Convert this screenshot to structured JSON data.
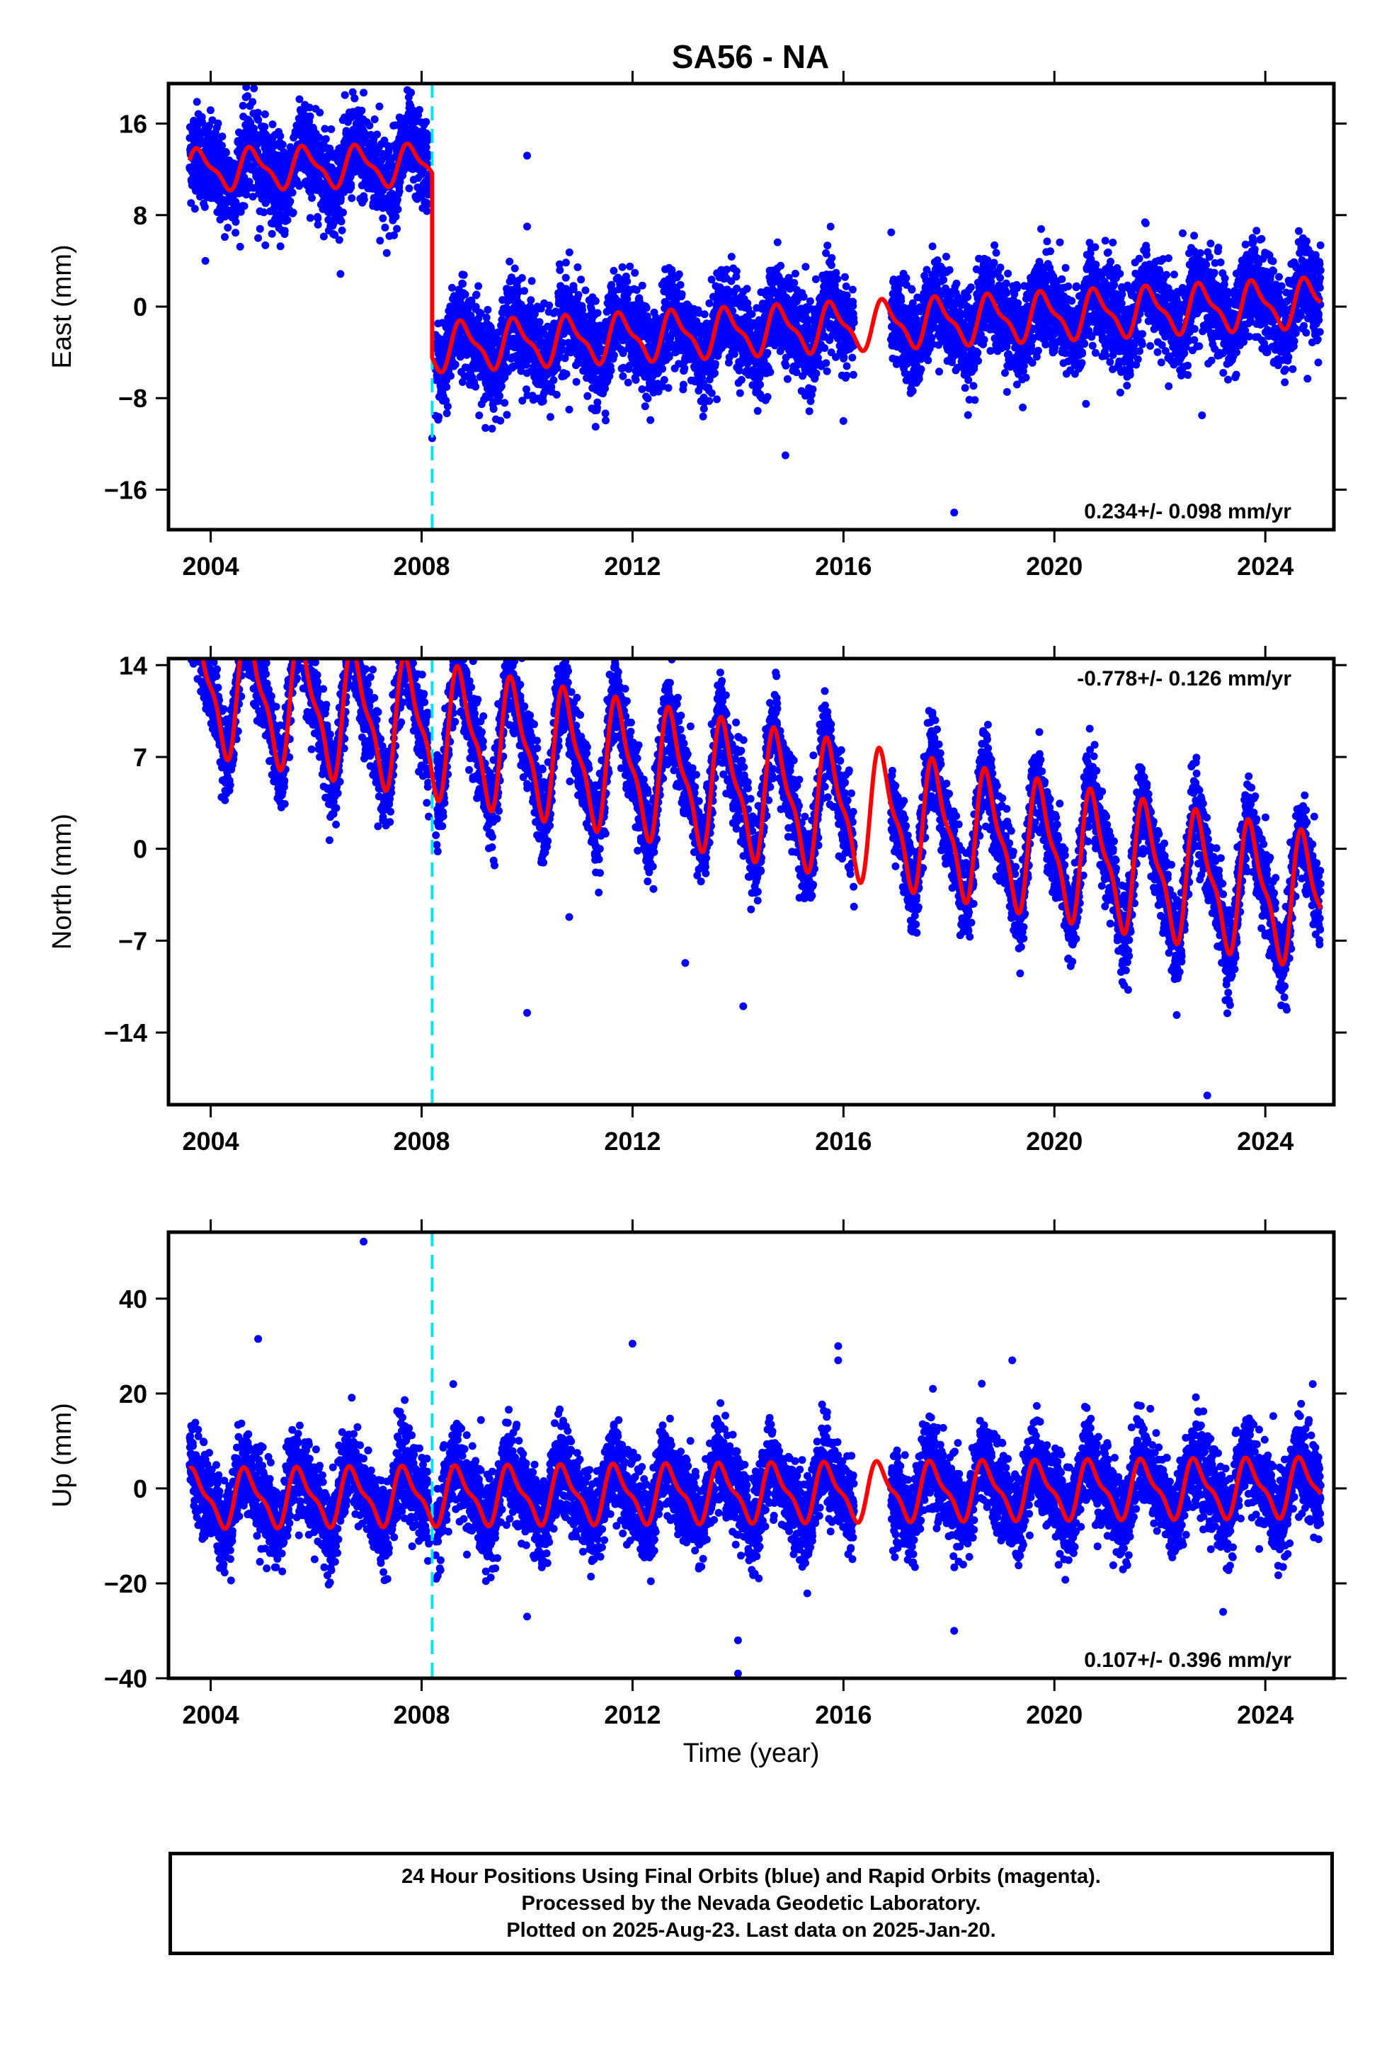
{
  "title": "SA56 - NA",
  "colors": {
    "final_orbits": "#0000ff",
    "model_fit": "#ff0000",
    "equipment_change": "#00e5ee",
    "axes": "#000000"
  },
  "xaxis": {
    "label": "Time (year)",
    "range": [
      2003.2,
      2025.3
    ],
    "ticks": [
      "2004",
      "2008",
      "2012",
      "2016",
      "2020",
      "2024"
    ]
  },
  "equipment_change_epoch": 2008.2,
  "chart_data": [
    {
      "type": "scatter",
      "panel": "east",
      "ylabel": "East (mm)",
      "ylim": [
        -19.5,
        19.5
      ],
      "ytick_values": [
        16,
        8,
        0,
        -8,
        -16
      ],
      "ytick_labels": [
        "16",
        "8",
        "0",
        "−8",
        "−16"
      ],
      "rate_label": "0.234+/- 0.098 mm/yr",
      "rate_position": "bottom-right",
      "data_span": [
        2003.6,
        2025.05
      ],
      "data_gap": [
        2016.2,
        2016.9
      ],
      "series": [
        {
          "name": "Final Orbits",
          "kind": "points",
          "color": "#0000ff",
          "scatter_mm": 2.0
        },
        {
          "name": "Rapid Orbits",
          "kind": "points",
          "color": "#ff00ff",
          "values": []
        },
        {
          "name": "Model fit",
          "kind": "line",
          "color": "#ff0000",
          "segments": [
            {
              "start": 2003.6,
              "end": 2008.2,
              "offset_mm": 13.0,
              "rate_mm_per_yr": 0.1,
              "annual_amp_mm": 1.6,
              "annual_phase_yr": 0.55
            },
            {
              "start": 2008.2,
              "end": 2025.05,
              "offset_mm": -2.2,
              "rate_mm_per_yr": 0.234,
              "annual_amp_mm": 1.9,
              "annual_phase_yr": 0.55
            }
          ]
        }
      ],
      "outliers": [
        [
          2006.9,
          18.7
        ],
        [
          2007.2,
          17.5
        ],
        [
          2010.0,
          13.2
        ],
        [
          2010.0,
          7.0
        ],
        [
          2003.9,
          4.0
        ],
        [
          2004.9,
          6.0
        ],
        [
          2008.2,
          -11.5
        ],
        [
          2010.8,
          -9.0
        ],
        [
          2011.3,
          -10.5
        ],
        [
          2014.9,
          -13.0
        ],
        [
          2016.0,
          -10.0
        ],
        [
          2018.1,
          -18.0
        ],
        [
          2020.6,
          -8.5
        ],
        [
          2022.8,
          -9.5
        ],
        [
          2024.8,
          -6.3
        ]
      ]
    },
    {
      "type": "scatter",
      "panel": "north",
      "ylabel": "North (mm)",
      "ylim": [
        -19.5,
        14.5
      ],
      "ytick_values": [
        14,
        7,
        0,
        -7,
        -14
      ],
      "ytick_labels": [
        "14",
        "7",
        "0",
        "−7",
        "−14"
      ],
      "rate_label": "-0.778+/- 0.126 mm/yr",
      "rate_position": "top-right",
      "data_span": [
        2003.6,
        2025.05
      ],
      "data_gap": [
        2016.2,
        2016.9
      ],
      "series": [
        {
          "name": "Final Orbits",
          "kind": "points",
          "color": "#0000ff",
          "scatter_mm": 1.6
        },
        {
          "name": "Rapid Orbits",
          "kind": "points",
          "color": "#ff00ff",
          "values": []
        },
        {
          "name": "Model fit",
          "kind": "line",
          "color": "#ff0000",
          "segments": [
            {
              "start": 2003.6,
              "end": 2025.05,
              "offset_mm": 4.5,
              "rate_mm_per_yr": -0.778,
              "annual_amp_mm": 4.5,
              "annual_phase_yr": 0.5
            }
          ]
        }
      ],
      "outliers": [
        [
          2004.6,
          13.8
        ],
        [
          2008.6,
          14.0
        ],
        [
          2010.0,
          -12.5
        ],
        [
          2010.8,
          -5.2
        ],
        [
          2013.0,
          -8.7
        ],
        [
          2013.5,
          9.5
        ],
        [
          2014.1,
          -12.0
        ],
        [
          2022.9,
          -18.8
        ],
        [
          2023.3,
          -11.5
        ]
      ]
    },
    {
      "type": "scatter",
      "panel": "up",
      "ylabel": "Up (mm)",
      "ylim": [
        -40,
        54
      ],
      "ytick_values": [
        40,
        20,
        0,
        -20,
        -40
      ],
      "ytick_labels": [
        "40",
        "20",
        "0",
        "−20",
        "−40"
      ],
      "rate_label": "0.107+/- 0.396 mm/yr",
      "rate_position": "bottom-right",
      "data_span": [
        2003.6,
        2025.05
      ],
      "data_gap": [
        2016.2,
        2016.9
      ],
      "series": [
        {
          "name": "Final Orbits",
          "kind": "points",
          "color": "#0000ff",
          "scatter_mm": 4.5
        },
        {
          "name": "Rapid Orbits",
          "kind": "points",
          "color": "#ff00ff",
          "values": []
        },
        {
          "name": "Model fit",
          "kind": "line",
          "color": "#ff0000",
          "segments": [
            {
              "start": 2003.6,
              "end": 2025.05,
              "offset_mm": -1.0,
              "rate_mm_per_yr": 0.107,
              "annual_amp_mm": 5.5,
              "annual_phase_yr": 0.45
            }
          ]
        }
      ],
      "outliers": [
        [
          2006.9,
          52.0
        ],
        [
          2004.9,
          31.5
        ],
        [
          2012.0,
          30.5
        ],
        [
          2015.9,
          30.0
        ],
        [
          2015.9,
          27.0
        ],
        [
          2019.2,
          27.0
        ],
        [
          2008.6,
          22.0
        ],
        [
          2010.0,
          -27.0
        ],
        [
          2014.0,
          -39.0
        ],
        [
          2014.0,
          -32.0
        ],
        [
          2018.1,
          -30.0
        ],
        [
          2023.2,
          -26.0
        ],
        [
          2024.9,
          22.0
        ]
      ]
    }
  ],
  "footer": {
    "line1": "24 Hour Positions Using Final Orbits (blue) and Rapid Orbits (magenta).",
    "line2": "Processed by the Nevada Geodetic Laboratory.",
    "line3": "Plotted on 2025-Aug-23. Last data on 2025-Jan-20."
  }
}
